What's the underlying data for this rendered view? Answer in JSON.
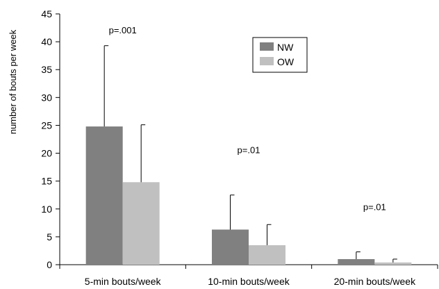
{
  "chart_data": {
    "type": "bar",
    "title": "",
    "xlabel": "",
    "ylabel": "number of bouts per week",
    "ylim": [
      0,
      45
    ],
    "yticks": [
      0,
      5,
      10,
      15,
      20,
      25,
      30,
      35,
      40,
      45
    ],
    "grid": false,
    "legend_position": "top-right",
    "categories": [
      "5-min bouts/week",
      "10-min bouts/week",
      "20-min bouts/week"
    ],
    "series": [
      {
        "name": "NW",
        "values": [
          24.8,
          6.3,
          1.0
        ],
        "errors": [
          14.5,
          6.2,
          1.3
        ],
        "color": "#808080"
      },
      {
        "name": "OW",
        "values": [
          14.8,
          3.5,
          0.4
        ],
        "errors": [
          10.3,
          3.7,
          0.6
        ],
        "color": "#c0c0c0"
      }
    ],
    "annotations": [
      {
        "category": "5-min bouts/week",
        "text": "p=.001"
      },
      {
        "category": "10-min bouts/week",
        "text": "p=.01"
      },
      {
        "category": "20-min bouts/week",
        "text": "p=.01"
      }
    ]
  }
}
